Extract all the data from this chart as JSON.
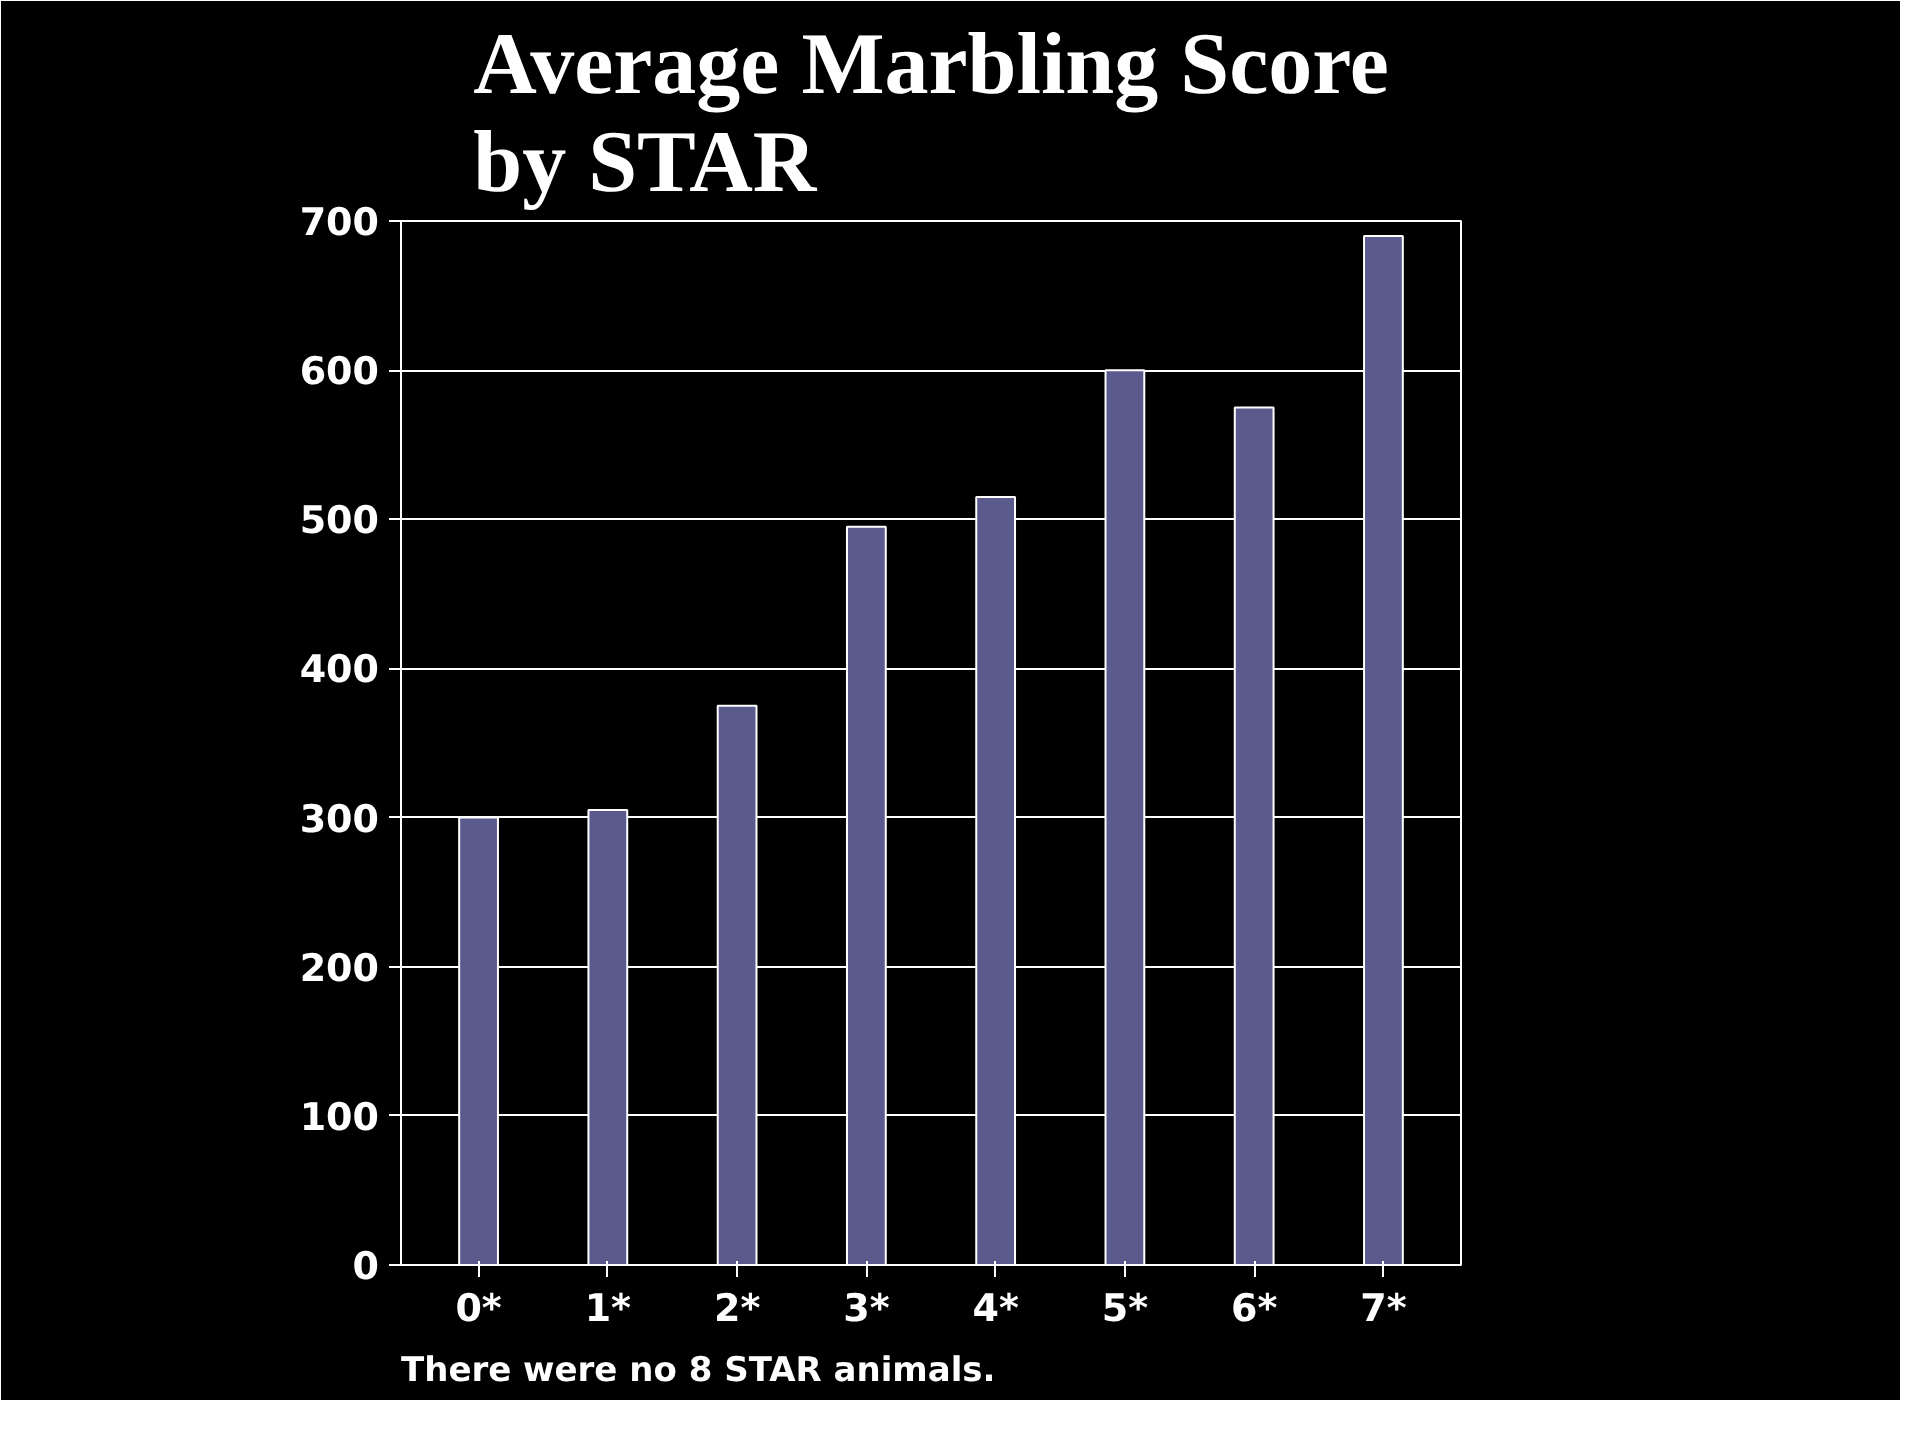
{
  "chart_data": {
    "type": "bar",
    "title": "Average Marbling Score\nby STAR",
    "categories": [
      "0*",
      "1*",
      "2*",
      "3*",
      "4*",
      "5*",
      "6*",
      "7*"
    ],
    "values": [
      300,
      305,
      375,
      495,
      515,
      600,
      575,
      690
    ],
    "color": "#5a5a8c",
    "ylim": [
      0,
      700
    ],
    "yticks": [
      0,
      100,
      200,
      300,
      400,
      500,
      600,
      700
    ],
    "grid": "y",
    "annotations": [
      "There were no 8 STAR animals."
    ]
  }
}
